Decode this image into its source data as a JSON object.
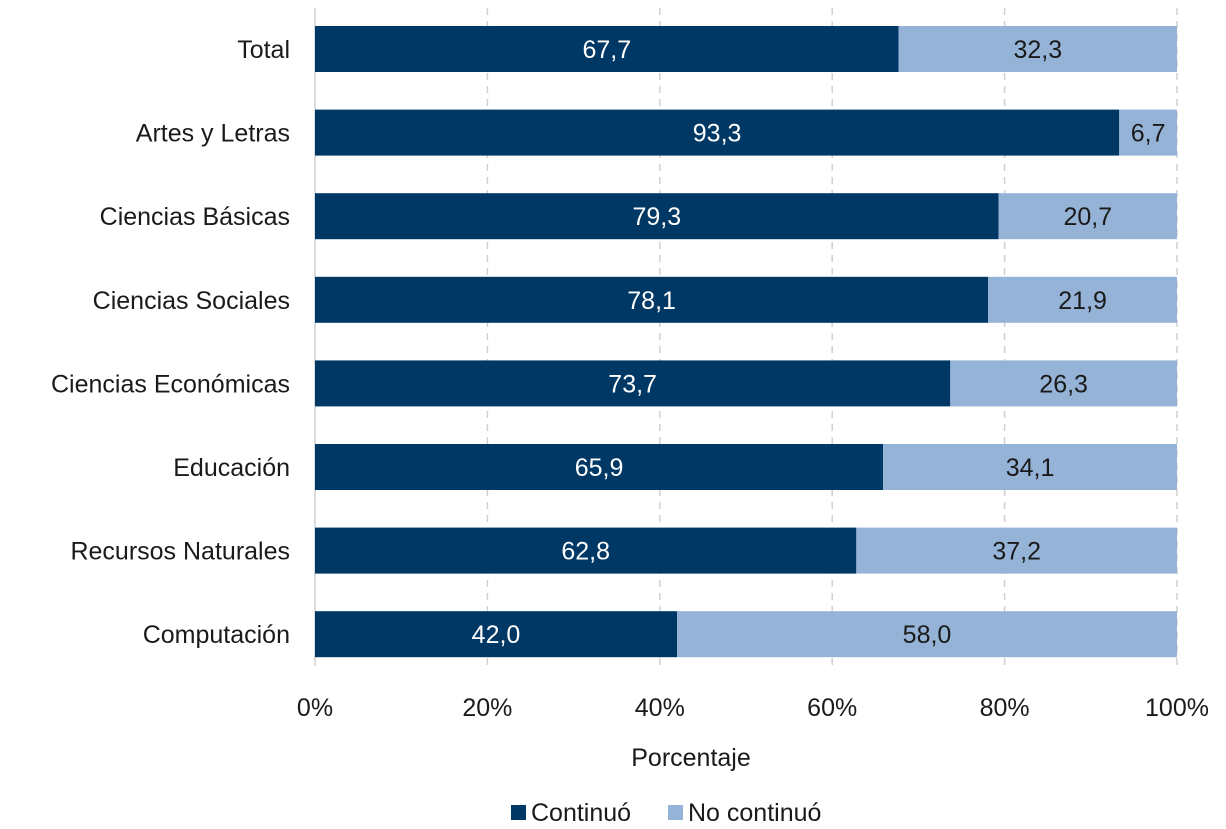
{
  "chart_data": {
    "type": "bar",
    "orientation": "horizontal",
    "stacked": true,
    "categories": [
      "Total",
      "Artes y Letras",
      "Ciencias Básicas",
      "Ciencias Sociales",
      "Ciencias Económicas",
      "Educación",
      "Recursos Naturales",
      "Computación"
    ],
    "series": [
      {
        "name": "Continuó",
        "color": "#003865",
        "values": [
          67.7,
          93.3,
          79.3,
          78.1,
          73.7,
          65.9,
          62.8,
          42.0
        ],
        "labels": [
          "67,7",
          "93,3",
          "79,3",
          "78,1",
          "73,7",
          "65,9",
          "62,8",
          "42,0"
        ]
      },
      {
        "name": "No continuó",
        "color": "#95b3d7",
        "values": [
          32.3,
          6.7,
          20.7,
          21.9,
          26.3,
          34.1,
          37.2,
          58.0
        ],
        "labels": [
          "32,3",
          "6,7",
          "20,7",
          "21,9",
          "26,3",
          "34,1",
          "37,2",
          "58,0"
        ]
      }
    ],
    "xlabel": "Porcentaje",
    "xlim": [
      0,
      100
    ],
    "xticks": [
      "0%",
      "20%",
      "40%",
      "60%",
      "80%",
      "100%"
    ],
    "grid": "vertical-dashed",
    "legend_position": "bottom"
  }
}
